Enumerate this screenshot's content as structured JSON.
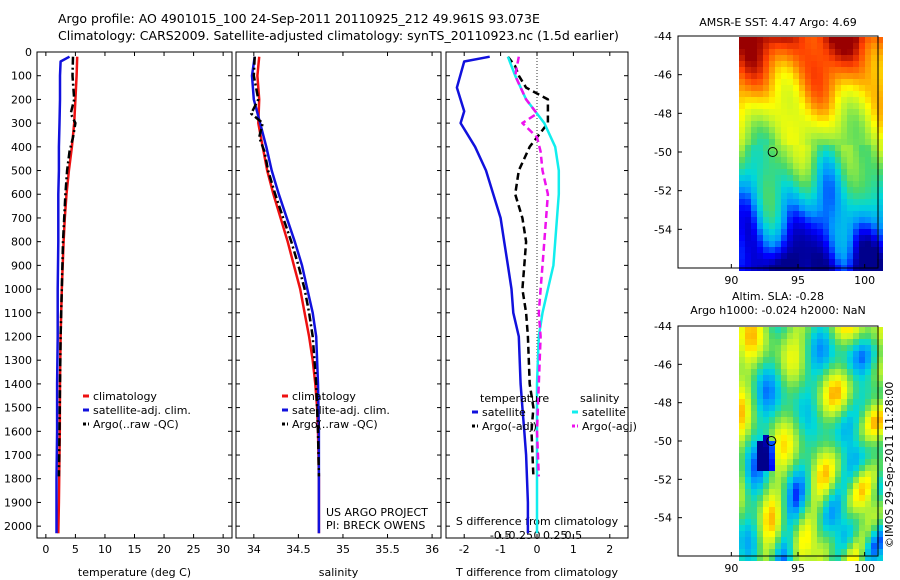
{
  "header": {
    "line1": "Argo profile: AO 4901015_100 24-Sep-2011 20110925_212 49.961S 93.073E",
    "line2": "Climatology: CARS2009. Satellite-adjusted climatology: synTS_20110923.nc (1.5d earlier)"
  },
  "credit": "©IMOS 29-Sep-2011 11:28:00",
  "colors": {
    "red": "#ee1111",
    "blue": "#1111dd",
    "black": "#000000",
    "cyan": "#11eeee",
    "magenta": "#ee11ee"
  },
  "chart_data": [
    {
      "type": "line",
      "id": "temperature",
      "xlabel": "temperature (deg C)",
      "ylabel": "",
      "xlim": [
        -1.5,
        31.5
      ],
      "ylim": [
        0,
        2050
      ],
      "y_reversed": true,
      "xticks": [
        0,
        5,
        10,
        15,
        20,
        25,
        30
      ],
      "xtick_labels": [
        "0",
        "5",
        "10",
        "15",
        "20",
        "25",
        "30"
      ],
      "yticks": [
        0,
        100,
        200,
        300,
        400,
        500,
        600,
        700,
        800,
        900,
        1000,
        1100,
        1200,
        1300,
        1400,
        1500,
        1600,
        1700,
        1800,
        1900,
        2000
      ],
      "ytick_labels": [
        "0",
        "100",
        "200",
        "300",
        "400",
        "500",
        "600",
        "700",
        "800",
        "900",
        "1000",
        "1100",
        "1200",
        "1300",
        "1400",
        "1500",
        "1600",
        "1700",
        "1800",
        "1900",
        "2000"
      ],
      "legend": {
        "placement": "lower-middle",
        "entries": [
          "climatology",
          "satellite-adj. clim.",
          "Argo(..raw -QC)"
        ]
      },
      "series": [
        {
          "name": "climatology",
          "color": "red",
          "dash": "solid",
          "x": [
            5.3,
            5.2,
            5.0,
            4.8,
            4.4,
            3.9,
            3.5,
            3.2,
            3.0,
            2.85,
            2.7,
            2.6,
            2.5,
            2.4,
            2.35,
            2.3,
            2.25,
            2.2,
            2.1
          ],
          "y": [
            20,
            100,
            200,
            300,
            400,
            500,
            600,
            700,
            800,
            900,
            1000,
            1100,
            1200,
            1400,
            1600,
            1700,
            1800,
            1900,
            2030
          ]
        },
        {
          "name": "satellite-adj. clim.",
          "color": "blue",
          "dash": "solid",
          "x": [
            4.0,
            2.5,
            2.4,
            2.4,
            2.3,
            2.2,
            2.2,
            2.1,
            2.1,
            2.0,
            2.0,
            1.9,
            1.9,
            1.8,
            1.8
          ],
          "y": [
            20,
            40,
            100,
            200,
            300,
            400,
            500,
            600,
            800,
            1000,
            1200,
            1400,
            1600,
            1800,
            2030
          ]
        },
        {
          "name": "Argo(..raw -QC)",
          "color": "black",
          "dash": "dashdot",
          "x": [
            4.6,
            4.5,
            4.8,
            4.2,
            5.0,
            4.6,
            4.0,
            3.6,
            3.3,
            3.1,
            2.9,
            2.8,
            2.7,
            2.6,
            2.5,
            2.4,
            2.3,
            2.2
          ],
          "y": [
            20,
            100,
            200,
            260,
            300,
            360,
            420,
            500,
            600,
            700,
            800,
            900,
            1000,
            1100,
            1200,
            1400,
            1600,
            1790
          ]
        }
      ]
    },
    {
      "type": "line",
      "id": "salinity",
      "xlabel": "salinity",
      "xlim": [
        33.8,
        36.1
      ],
      "ylim": [
        0,
        2050
      ],
      "y_reversed": true,
      "xticks": [
        34,
        34.5,
        35,
        35.5,
        36
      ],
      "xtick_labels": [
        "34",
        "34.5",
        "35",
        "35.5",
        "36"
      ],
      "legend": {
        "placement": "lower-middle",
        "entries": [
          "climatology",
          "satellite-adj. clim.",
          "Argo(..raw -QC)"
        ]
      },
      "annotation": [
        "US ARGO PROJECT",
        "PI: BRECK OWENS"
      ],
      "series": [
        {
          "name": "climatology",
          "color": "red",
          "dash": "solid",
          "x": [
            34.06,
            34.04,
            34.06,
            34.05,
            34.1,
            34.15,
            34.22,
            34.3,
            34.38,
            34.45,
            34.52,
            34.57,
            34.62,
            34.66,
            34.69,
            34.71,
            34.72,
            34.73,
            34.73
          ],
          "y": [
            20,
            100,
            200,
            300,
            400,
            500,
            600,
            700,
            800,
            900,
            1000,
            1100,
            1200,
            1300,
            1400,
            1500,
            1600,
            1800,
            2030
          ]
        },
        {
          "name": "satellite-adj. clim.",
          "color": "blue",
          "dash": "solid",
          "x": [
            34.01,
            33.98,
            34.0,
            34.07,
            34.14,
            34.2,
            34.28,
            34.37,
            34.46,
            34.54,
            34.6,
            34.66,
            34.7,
            34.72,
            34.73,
            34.73
          ],
          "y": [
            20,
            100,
            200,
            300,
            400,
            500,
            600,
            700,
            800,
            900,
            1000,
            1100,
            1200,
            1400,
            1600,
            2030
          ]
        },
        {
          "name": "Argo(..raw -QC)",
          "color": "black",
          "dash": "dashdot",
          "x": [
            34.01,
            34.0,
            34.05,
            33.97,
            34.1,
            34.06,
            34.12,
            34.16,
            34.24,
            34.33,
            34.42,
            34.5,
            34.57,
            34.62,
            34.66,
            34.7,
            34.72,
            34.73
          ],
          "y": [
            20,
            100,
            200,
            260,
            300,
            360,
            420,
            500,
            600,
            700,
            800,
            900,
            1000,
            1100,
            1200,
            1400,
            1600,
            1790
          ]
        }
      ]
    },
    {
      "type": "line",
      "id": "differences",
      "xlabel": "T difference from climatology",
      "top_label": "S difference from climatology",
      "xlim": [
        -2.5,
        2.5
      ],
      "ylim": [
        0,
        2050
      ],
      "y_reversed": true,
      "xticks": [
        -2,
        -1,
        0,
        1,
        2
      ],
      "xtick_labels": [
        "-2",
        "-1",
        "0",
        "1",
        "2"
      ],
      "top_xticks": [
        "-0.5",
        "-0.25",
        "0",
        "0.25",
        "0.5"
      ],
      "legend": {
        "placement": "lower-middle",
        "groups": [
          {
            "title": "temperature",
            "entries": [
              "satellite",
              "Argo(-adj)"
            ]
          },
          {
            "title": "salinity",
            "entries": [
              "satellite",
              "Argo(-adj)"
            ]
          }
        ]
      },
      "series": [
        {
          "name": "temperature satellite",
          "color": "blue",
          "dash": "solid",
          "x": [
            -1.3,
            -2.0,
            -2.2,
            -2.0,
            -2.1,
            -1.7,
            -1.4,
            -1.2,
            -1.0,
            -0.9,
            -0.8,
            -0.7,
            -0.65,
            -0.5,
            -0.45,
            -0.4,
            -0.35,
            -0.3,
            -0.25,
            -0.25
          ],
          "y": [
            20,
            40,
            150,
            250,
            300,
            400,
            500,
            600,
            700,
            800,
            900,
            1000,
            1100,
            1200,
            1400,
            1500,
            1600,
            1700,
            1900,
            2030
          ]
        },
        {
          "name": "temperature Argo(-adj)",
          "color": "black",
          "dash": "dashed",
          "x": [
            -0.8,
            -0.6,
            -0.5,
            -0.3,
            0.3,
            0.3,
            -0.2,
            -0.5,
            -0.6,
            -0.4,
            -0.3,
            -0.35,
            -0.4,
            -0.3,
            -0.25,
            -0.2,
            -0.1,
            -0.15,
            -0.1
          ],
          "y": [
            20,
            60,
            100,
            150,
            200,
            300,
            400,
            500,
            600,
            700,
            800,
            900,
            1000,
            1100,
            1200,
            1400,
            1500,
            1600,
            1790
          ]
        },
        {
          "name": "salinity satellite",
          "color": "cyan",
          "dash": "solid",
          "x": [
            -0.8,
            -0.6,
            -0.3,
            0.2,
            0.5,
            0.6,
            0.6,
            0.55,
            0.5,
            0.45,
            0.3,
            0.15,
            0.05,
            0.0,
            0.0,
            0.0
          ],
          "y": [
            20,
            100,
            200,
            300,
            400,
            500,
            600,
            700,
            800,
            900,
            1000,
            1100,
            1200,
            1400,
            1600,
            2030
          ]
        },
        {
          "name": "salinity Argo(-adj)",
          "color": "magenta",
          "dash": "dashed",
          "x": [
            -0.5,
            -0.6,
            -0.3,
            0.0,
            -0.4,
            0.0,
            0.1,
            0.15,
            0.3,
            0.25,
            0.2,
            0.15,
            0.1,
            0.05,
            0.1,
            0.05,
            0.0,
            0.05
          ],
          "y": [
            20,
            100,
            200,
            260,
            300,
            360,
            420,
            500,
            600,
            700,
            800,
            900,
            1000,
            1100,
            1200,
            1400,
            1600,
            1790
          ]
        }
      ]
    },
    {
      "type": "heatmap",
      "id": "sst-map",
      "title": "AMSR-E SST: 4.47 Argo: 4.69",
      "xlim": [
        86,
        101
      ],
      "ylim": [
        -56,
        -44
      ],
      "xticks": [
        90,
        95,
        100
      ],
      "yticks": [
        -44,
        -46,
        -48,
        -50,
        -52,
        -54
      ],
      "marker": {
        "lon": 93.1,
        "lat": -50.0
      },
      "color_scale": "jet"
    },
    {
      "type": "heatmap",
      "id": "sla-map",
      "title_lines": [
        "Altim. SLA: -0.28",
        "Argo h1000: -0.024 h2000: NaN"
      ],
      "xlim": [
        86,
        101
      ],
      "ylim": [
        -56,
        -44
      ],
      "xticks": [
        90,
        95,
        100
      ],
      "yticks": [
        -44,
        -46,
        -48,
        -50,
        -52,
        -54
      ],
      "marker": {
        "lon": 93.0,
        "lat": -50.0
      },
      "color_scale": "jet"
    }
  ]
}
